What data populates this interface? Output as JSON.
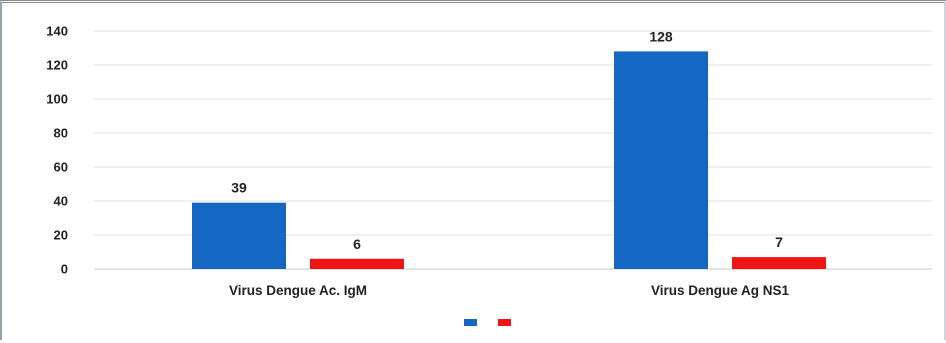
{
  "chart_data": {
    "type": "bar",
    "categories": [
      "Virus Dengue Ac. IgM",
      "Virus Dengue Ag NS1"
    ],
    "series": [
      {
        "values": [
          39,
          128
        ],
        "color": "#1467c2"
      },
      {
        "values": [
          6,
          7
        ],
        "color": "#f01414"
      }
    ],
    "ylim": [
      0,
      140
    ],
    "yticks": [
      0,
      20,
      40,
      60,
      80,
      100,
      120,
      140
    ],
    "grid": true,
    "legend_position": "bottom",
    "data_labels": true
  }
}
